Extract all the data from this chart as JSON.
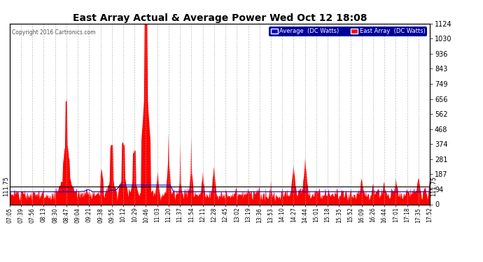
{
  "title": "East Array Actual & Average Power Wed Oct 12 18:08",
  "copyright": "Copyright 2016 Cartronics.com",
  "ylabel_right_ticks": [
    0.0,
    93.6,
    187.3,
    280.9,
    374.5,
    468.2,
    561.8,
    655.5,
    749.1,
    842.7,
    936.4,
    1030.0,
    1123.6
  ],
  "ymin": 0.0,
  "ymax": 1123.6,
  "hline_y": 111.75,
  "hline_label": "111.75",
  "legend_avg_label": "Average  (DC Watts)",
  "legend_east_label": "East Array  (DC Watts)",
  "legend_avg_color": "#0000cc",
  "legend_east_color": "#ff0000",
  "bg_color": "#ffffff",
  "plot_bg_color": "#ffffff",
  "grid_color": "#b0b0b0",
  "title_color": "#000000",
  "fill_color": "#ff0000",
  "avg_line_color": "#0000ff",
  "hline_color": "#000000",
  "x_tick_labels": [
    "07:05",
    "07:39",
    "07:56",
    "08:13",
    "08:30",
    "08:47",
    "09:04",
    "09:21",
    "09:38",
    "09:55",
    "10:12",
    "10:29",
    "10:46",
    "11:03",
    "11:20",
    "11:37",
    "11:54",
    "12:11",
    "12:28",
    "12:45",
    "13:02",
    "13:19",
    "13:36",
    "13:53",
    "14:10",
    "14:27",
    "14:44",
    "15:01",
    "15:18",
    "15:35",
    "15:52",
    "16:09",
    "16:26",
    "16:44",
    "17:01",
    "17:18",
    "17:35",
    "17:52"
  ],
  "n_ticks": 38
}
